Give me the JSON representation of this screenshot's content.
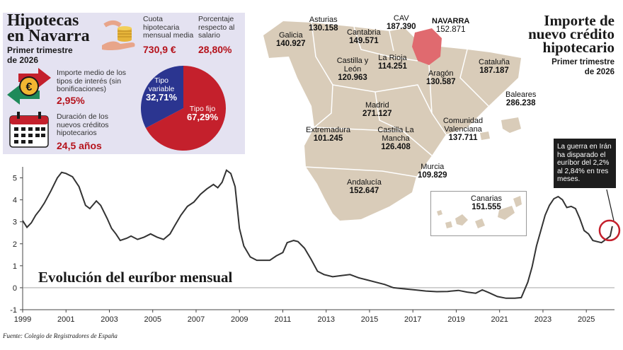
{
  "info": {
    "title_line1": "Hipotecas",
    "title_line2": "en Navarra",
    "period": "Primer trimestre de 2026",
    "cuota_label": "Cuota hipotecaria mensual media",
    "cuota_value": "730,9 €",
    "porcentaje_label": "Porcentaje respecto al salario",
    "porcentaje_value": "28,80%",
    "interes_label": "Importe medio de los tipos de interés (sin bonificaciones)",
    "interes_value": "2,95%",
    "duracion_label": "Duración de los nuevos créditos hipotecarios",
    "duracion_value": "24,5 años",
    "pie": {
      "variable_label": "Tipo variable",
      "variable_value": "32,71%",
      "variable_pct": 32.71,
      "fijo_label": "Tipo fijo",
      "fijo_value": "67,29%",
      "fijo_pct": 67.29,
      "color_variable": "#2b3590",
      "color_fijo": "#c4202c"
    }
  },
  "map": {
    "title_line1": "Importe de",
    "title_line2": "nuevo crédito",
    "title_line3": "hipotecario",
    "subtitle_line1": "Primer trimestre",
    "subtitle_line2": "de 2026",
    "regions": [
      {
        "name": "Galicia",
        "value": "140.927"
      },
      {
        "name": "Asturias",
        "value": "130.158"
      },
      {
        "name": "Cantabria",
        "value": "149.571"
      },
      {
        "name": "CAV",
        "value": "187.390"
      },
      {
        "name": "NAVARRA",
        "value": "152.871"
      },
      {
        "name": "Castilla y León",
        "value": "120.963"
      },
      {
        "name": "La Rioja",
        "value": "114.251"
      },
      {
        "name": "Cataluña",
        "value": "187.187"
      },
      {
        "name": "Aragón",
        "value": "130.587"
      },
      {
        "name": "Madrid",
        "value": "271.127"
      },
      {
        "name": "Baleares",
        "value": "286.238"
      },
      {
        "name": "Extremadura",
        "value": "101.245"
      },
      {
        "name": "Castilla La Mancha",
        "value": "126.408"
      },
      {
        "name": "Comunidad Valenciana",
        "value": "137.711"
      },
      {
        "name": "Murcia",
        "value": "109.829"
      },
      {
        "name": "Andalucía",
        "value": "152.647"
      },
      {
        "name": "Canarias",
        "value": "151.555"
      }
    ],
    "land_color": "#d9ccb9",
    "highlight_color": "#e06a6f",
    "callout": "La guerra en Irán ha disparado el euríbor del 2,2% al 2,84% en tres meses."
  },
  "chart_data": {
    "type": "line",
    "title": "Evolución del euríbor mensual",
    "xlabel": "",
    "ylabel": "",
    "xlim": [
      1999,
      2026.3
    ],
    "ylim": [
      -1,
      5.5
    ],
    "yticks": [
      -1,
      0,
      1,
      2,
      3,
      4,
      5
    ],
    "xticks": [
      1999,
      2001,
      2003,
      2005,
      2007,
      2009,
      2011,
      2013,
      2015,
      2017,
      2019,
      2021,
      2023,
      2025
    ],
    "grid": false,
    "line_color": "#333333",
    "x": [
      1999.0,
      1999.2,
      1999.4,
      1999.6,
      1999.8,
      2000.0,
      2000.3,
      2000.6,
      2000.8,
      2001.0,
      2001.3,
      2001.6,
      2001.9,
      2002.1,
      2002.4,
      2002.6,
      2002.9,
      2003.1,
      2003.3,
      2003.5,
      2003.8,
      2004.0,
      2004.3,
      2004.6,
      2004.9,
      2005.2,
      2005.5,
      2005.8,
      2006.0,
      2006.3,
      2006.6,
      2006.9,
      2007.2,
      2007.5,
      2007.8,
      2008.0,
      2008.2,
      2008.4,
      2008.6,
      2008.8,
      2009.0,
      2009.2,
      2009.5,
      2009.8,
      2010.1,
      2010.4,
      2010.7,
      2011.0,
      2011.2,
      2011.5,
      2011.7,
      2012.0,
      2012.3,
      2012.6,
      2012.9,
      2013.3,
      2013.7,
      2014.1,
      2014.5,
      2014.9,
      2015.3,
      2015.7,
      2016.1,
      2016.6,
      2017.1,
      2017.6,
      2018.1,
      2018.6,
      2019.1,
      2019.5,
      2019.9,
      2020.2,
      2020.5,
      2020.9,
      2021.3,
      2021.7,
      2022.0,
      2022.3,
      2022.5,
      2022.7,
      2022.9,
      2023.1,
      2023.3,
      2023.5,
      2023.7,
      2023.9,
      2024.1,
      2024.3,
      2024.5,
      2024.7,
      2024.9,
      2025.1,
      2025.3,
      2025.5,
      2025.7,
      2025.9,
      2026.1,
      2026.2
    ],
    "y": [
      3.05,
      2.75,
      2.95,
      3.3,
      3.55,
      3.85,
      4.4,
      5.0,
      5.25,
      5.2,
      5.05,
      4.6,
      3.75,
      3.6,
      3.95,
      3.75,
      3.15,
      2.7,
      2.45,
      2.15,
      2.25,
      2.35,
      2.2,
      2.3,
      2.45,
      2.3,
      2.2,
      2.45,
      2.8,
      3.3,
      3.7,
      3.9,
      4.25,
      4.5,
      4.7,
      4.55,
      4.8,
      5.35,
      5.2,
      4.6,
      2.7,
      1.9,
      1.4,
      1.25,
      1.25,
      1.25,
      1.45,
      1.6,
      2.05,
      2.15,
      2.1,
      1.8,
      1.3,
      0.75,
      0.6,
      0.5,
      0.55,
      0.6,
      0.45,
      0.35,
      0.25,
      0.15,
      0.0,
      -0.05,
      -0.1,
      -0.15,
      -0.18,
      -0.17,
      -0.12,
      -0.2,
      -0.25,
      -0.1,
      -0.22,
      -0.4,
      -0.48,
      -0.48,
      -0.45,
      0.25,
      0.95,
      1.9,
      2.6,
      3.3,
      3.75,
      4.05,
      4.15,
      4.0,
      3.65,
      3.7,
      3.6,
      3.15,
      2.6,
      2.45,
      2.15,
      2.1,
      2.05,
      2.2,
      2.35,
      2.8
    ]
  },
  "source": "Fuente: Colegio de Registradores de España"
}
